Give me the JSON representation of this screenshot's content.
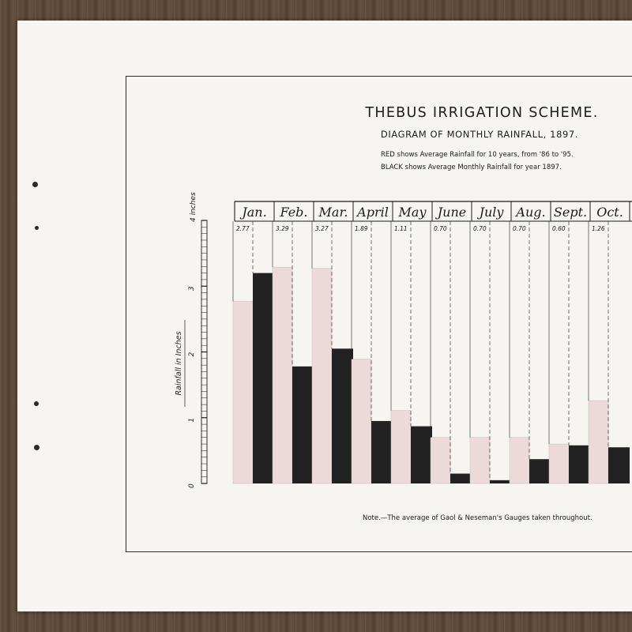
{
  "document": {
    "title": "THEBUS IRRIGATION SCHEME.",
    "subtitle": "DIAGRAM OF MONTHLY RAINFALL, 1897.",
    "legend_red": "RED shows Average Rainfall for 10 years, from '86 to '95.",
    "legend_black": "BLACK shows Average Monthly Rainfall for year 1897.",
    "note": "Note.—The average of Gaol & Neseman's Gauges taken throughout."
  },
  "colors": {
    "average": "#ecdada",
    "year_1897": "#222222",
    "ink": "#1c1c1c",
    "paper": "#f6f5f1"
  },
  "chart_data": {
    "type": "bar",
    "ylabel": "Rainfall in Inches",
    "axis_unit_label": "4 inches",
    "y_ticks": [
      "0",
      "1",
      "2",
      "3"
    ],
    "ylim": [
      0,
      4
    ],
    "categories": [
      "Jan.",
      "Feb.",
      "Mar.",
      "April",
      "May",
      "June",
      "July",
      "Aug.",
      "Sept.",
      "Oct."
    ],
    "value_labels": [
      "2.77",
      "3.29",
      "3.27",
      "1.89",
      "1.11",
      "0.70",
      "0.70",
      "0.70",
      "0.60",
      "1.26"
    ],
    "series": [
      {
        "name": "RED",
        "values": [
          2.77,
          3.29,
          3.27,
          1.89,
          1.11,
          0.7,
          0.7,
          0.7,
          0.6,
          1.26
        ]
      },
      {
        "name": "BLACK",
        "values": [
          3.2,
          1.78,
          2.05,
          0.95,
          0.87,
          0.15,
          0.05,
          0.37,
          0.58,
          0.55
        ]
      }
    ]
  }
}
